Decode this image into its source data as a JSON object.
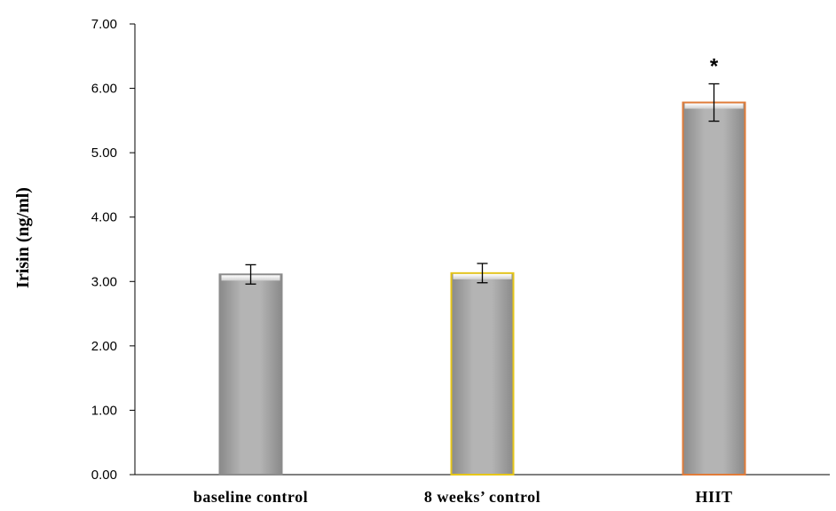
{
  "chart_data": {
    "type": "bar",
    "title": "",
    "xlabel": "",
    "ylabel": "Irisin (ng/ml)",
    "ylim": [
      0,
      7
    ],
    "yticks": [
      "0.00",
      "1.00",
      "2.00",
      "3.00",
      "4.00",
      "5.00",
      "6.00",
      "7.00"
    ],
    "categories": [
      "baseline control",
      "8 weeks’ control",
      "HIIT"
    ],
    "values": [
      3.11,
      3.13,
      5.78
    ],
    "errors": [
      0.15,
      0.15,
      0.29
    ],
    "annotations": [
      "",
      "",
      "*"
    ],
    "bar_color": "#a9a9a9",
    "bar_outline_colors": [
      "#8c8c8c",
      "#e6c619",
      "#e07b39"
    ],
    "grid": false,
    "legend": "none"
  }
}
